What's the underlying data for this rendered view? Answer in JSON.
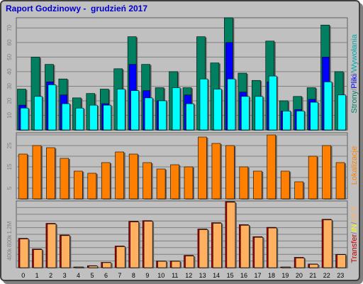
{
  "report": {
    "title": "Raport Godzinowy -  grudzień 2017"
  },
  "colors": {
    "strony": "#008060",
    "pliki": "#0000ff",
    "wywolania": "#00ffff",
    "kb": "#ff8000",
    "in": "#c00000",
    "out": "#ffb060",
    "panel": "#c0c0c0",
    "grid": "#808080"
  },
  "chart_data": [
    {
      "type": "bar",
      "panel": "top",
      "categories": [
        "0",
        "1",
        "2",
        "3",
        "4",
        "5",
        "6",
        "7",
        "8",
        "9",
        "10",
        "11",
        "12",
        "13",
        "14",
        "15",
        "16",
        "17",
        "18",
        "19",
        "20",
        "21",
        "22",
        "23"
      ],
      "side_label": [
        {
          "text": "Strony",
          "color": "#008060"
        },
        {
          "text": "/",
          "color": "#808080"
        },
        {
          "text": "Pliki",
          "color": "#0000ff"
        },
        {
          "text": "/",
          "color": "#808080"
        },
        {
          "text": "Wywołania",
          "color": "#00aaaa"
        }
      ],
      "y_ticks": [
        "10",
        "20",
        "30",
        "40",
        "50",
        "60",
        "70"
      ],
      "ylim": [
        0,
        77
      ],
      "series": [
        {
          "values": [
            28,
            50,
            45,
            35,
            22,
            25,
            28,
            42,
            64,
            45,
            29,
            40,
            29,
            64,
            46,
            77,
            39,
            34,
            61,
            20,
            23,
            29,
            72,
            40
          ]
        },
        {
          "values": [
            17,
            0,
            33,
            24,
            0,
            0,
            18,
            0,
            45,
            27,
            20,
            0,
            24,
            0,
            0,
            60,
            26,
            0,
            33,
            13,
            14,
            21,
            50,
            0
          ]
        },
        {
          "values": [
            15,
            23,
            31,
            18,
            15,
            17,
            17,
            28,
            27,
            22,
            20,
            29,
            18,
            35,
            28,
            35,
            23,
            23,
            37,
            13,
            13,
            19,
            33,
            24
          ]
        }
      ]
    },
    {
      "type": "bar",
      "panel": "middle",
      "categories": [
        "0",
        "1",
        "2",
        "3",
        "4",
        "5",
        "6",
        "7",
        "8",
        "9",
        "10",
        "11",
        "12",
        "13",
        "14",
        "15",
        "16",
        "17",
        "18",
        "19",
        "20",
        "21",
        "22",
        "23"
      ],
      "side_label": [
        {
          "text": "Lokalizacje",
          "color": "#ff8000"
        }
      ],
      "y_ticks": [
        "5",
        "15",
        "25"
      ],
      "ylim": [
        0,
        31
      ],
      "series": [
        {
          "values": [
            21,
            25,
            24,
            19,
            13,
            12,
            17,
            22,
            21,
            17,
            14,
            16,
            15,
            29,
            26,
            25,
            15,
            13,
            30,
            13,
            8,
            20,
            25,
            17
          ]
        }
      ]
    },
    {
      "type": "bar",
      "panel": "bottom",
      "categories": [
        "0",
        "1",
        "2",
        "3",
        "4",
        "5",
        "6",
        "7",
        "8",
        "9",
        "10",
        "11",
        "12",
        "13",
        "14",
        "15",
        "16",
        "17",
        "18",
        "19",
        "20",
        "21",
        "22",
        "23"
      ],
      "side_label": [
        {
          "text": "Transfer",
          "color": "#c00000"
        },
        {
          "text": "/",
          "color": "#808080"
        },
        {
          "text": "IN",
          "color": "#ffff00"
        },
        {
          "text": "/",
          "color": "#808080"
        },
        {
          "text": "OUT",
          "color": "#ffb060"
        }
      ],
      "y_ticks": [
        "400k",
        "800k",
        "1.2M"
      ],
      "ylim": [
        0,
        2000
      ],
      "series": [
        {
          "values": [
            880,
            560,
            1330,
            980,
            20,
            60,
            160,
            650,
            1390,
            1410,
            200,
            200,
            370,
            1160,
            1350,
            1980,
            1290,
            930,
            1210,
            20,
            310,
            110,
            1450,
            400
          ]
        },
        {
          "values": [
            860,
            540,
            1310,
            960,
            20,
            50,
            150,
            630,
            1370,
            1390,
            190,
            190,
            350,
            1140,
            1330,
            1960,
            1270,
            910,
            1190,
            20,
            290,
            100,
            1430,
            390
          ]
        }
      ]
    }
  ]
}
